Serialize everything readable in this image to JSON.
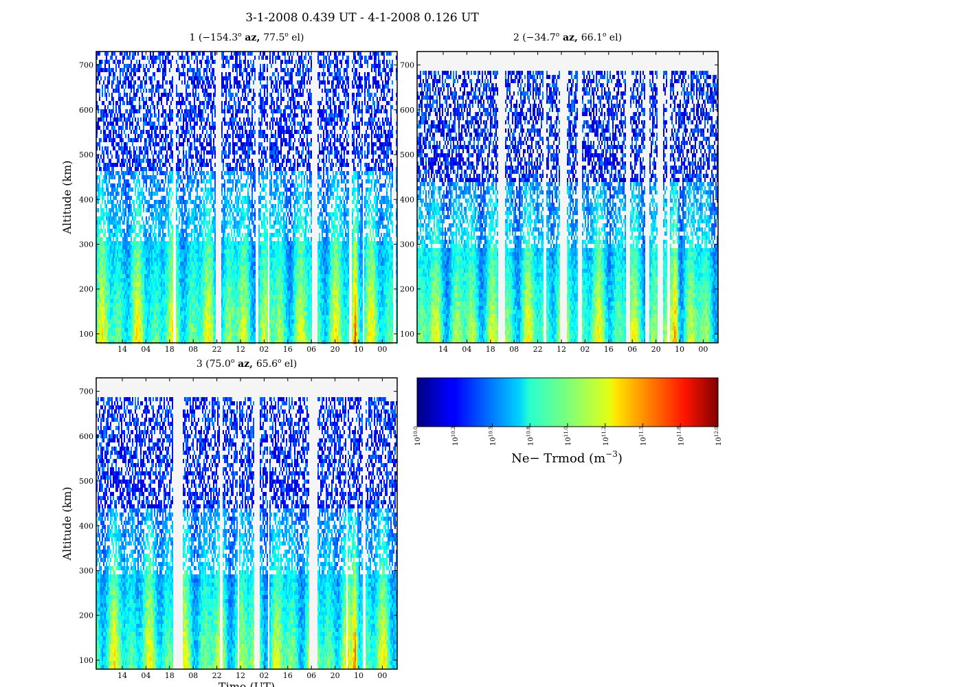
{
  "figure": {
    "title": "3-1-2008 0.439 UT - 4-1-2008 0.126 UT"
  },
  "chart_data": [
    {
      "type": "heatmap",
      "title": "1 (−154.3° az, 77.5° el)",
      "title_parts": {
        "prefix": "1 (",
        "az": "−154.3",
        "el": "77.5"
      },
      "ylabel": "Altitude (km)",
      "xlabel": "",
      "yticks": [
        100,
        200,
        300,
        400,
        500,
        600,
        700
      ],
      "ylim": [
        80,
        730
      ],
      "xticklabels": [
        "14",
        "04",
        "18",
        "08",
        "22",
        "12",
        "02",
        "16",
        "06",
        "20",
        "10",
        "00"
      ],
      "data_top_km": 730,
      "gaps_hours": [
        [
          24.5,
          25.4
        ],
        [
          38.1,
          39.6
        ],
        [
          50.5,
          51.5
        ],
        [
          54.5,
          54.9
        ],
        [
          68.6,
          70.5
        ],
        [
          80.5,
          81.2
        ],
        [
          84.7,
          85.3
        ],
        [
          94.5,
          95.5
        ]
      ],
      "peak_hour": 82.5
    },
    {
      "type": "heatmap",
      "title": "2 (−34.7° az, 66.1° el)",
      "title_parts": {
        "prefix": "2 (",
        "az": "−34.7",
        "el": "66.1"
      },
      "ylabel": "",
      "xlabel": "",
      "yticks": [
        100,
        200,
        300,
        400,
        500,
        600,
        700
      ],
      "ylim": [
        80,
        730
      ],
      "xticklabels": [
        "14",
        "04",
        "18",
        "08",
        "22",
        "12",
        "02",
        "16",
        "06",
        "20",
        "10",
        "00"
      ],
      "data_top_km": 687,
      "gaps_hours": [
        [
          25.5,
          27.8
        ],
        [
          40.1,
          40.8
        ],
        [
          45.5,
          47.4
        ],
        [
          51.0,
          52.6
        ],
        [
          66.6,
          67.6
        ],
        [
          72.4,
          73.8
        ],
        [
          76.3,
          78.2
        ],
        [
          79.5,
          80.3
        ]
      ],
      "peak_hour": 82.3
    },
    {
      "type": "heatmap",
      "title": "3 (75.0° az, 65.6° el)",
      "title_parts": {
        "prefix": "3 (",
        "az": "75.0",
        "el": "65.6"
      },
      "ylabel": "Altitude (km)",
      "xlabel": "Time (UT)",
      "yticks": [
        100,
        200,
        300,
        400,
        500,
        600,
        700
      ],
      "ylim": [
        80,
        730
      ],
      "xticklabels": [
        "14",
        "04",
        "18",
        "08",
        "22",
        "12",
        "02",
        "16",
        "06",
        "20",
        "10",
        "00"
      ],
      "data_top_km": 687,
      "gaps_hours": [
        [
          24.5,
          27.6
        ],
        [
          39.3,
          40.2
        ],
        [
          44.8,
          45.4
        ],
        [
          50.3,
          51.9
        ],
        [
          54.5,
          55.0
        ],
        [
          67.8,
          70.2
        ],
        [
          79.5,
          80.2
        ],
        [
          84.7,
          85.6
        ]
      ],
      "peak_hour": 82.4
    }
  ],
  "colorbar": {
    "label_text": "Ne− Trmod (m",
    "label_exponent": "−3",
    "label_close": ")",
    "colormap": "jet",
    "ticks": [
      {
        "base": "10",
        "exp": "10.0"
      },
      {
        "base": "10",
        "exp": "10.2"
      },
      {
        "base": "10",
        "exp": "10.5"
      },
      {
        "base": "10",
        "exp": "10.8"
      },
      {
        "base": "10",
        "exp": "11.0"
      },
      {
        "base": "10",
        "exp": "11.2"
      },
      {
        "base": "10",
        "exp": "11.5"
      },
      {
        "base": "10",
        "exp": "11.8"
      },
      {
        "base": "10",
        "exp": "12.0"
      }
    ]
  },
  "colors": {
    "no_data_background": "#f5f5f5",
    "axes_frame": "#000000"
  }
}
